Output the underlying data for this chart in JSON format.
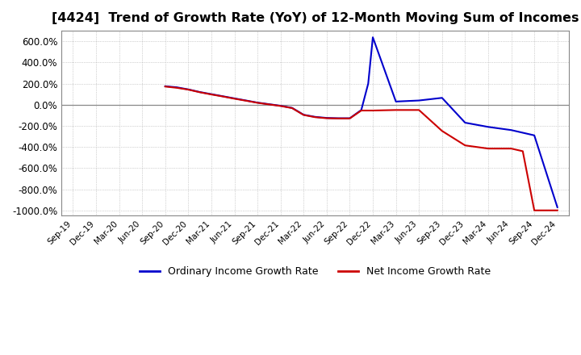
{
  "title": "[4424]  Trend of Growth Rate (YoY) of 12-Month Moving Sum of Incomes",
  "title_fontsize": 11.5,
  "background_color": "#ffffff",
  "plot_bg_color": "#ffffff",
  "grid_color": "#aaaaaa",
  "zero_line_color": "#888888",
  "ordinary_color": "#0000cc",
  "net_color": "#cc0000",
  "ylim": [
    -1050,
    700
  ],
  "yticks": [
    600,
    400,
    200,
    0,
    -200,
    -400,
    -600,
    -800,
    -1000
  ],
  "xtick_labels": [
    "Sep-19",
    "Dec-19",
    "Mar-20",
    "Jun-20",
    "Sep-20",
    "Dec-20",
    "Mar-21",
    "Jun-21",
    "Sep-21",
    "Dec-21",
    "Mar-22",
    "Jun-22",
    "Sep-22",
    "Dec-22",
    "Mar-23",
    "Jun-23",
    "Sep-23",
    "Dec-23",
    "Mar-24",
    "Jun-24",
    "Sep-24",
    "Dec-24"
  ],
  "ord_x": [
    4,
    4.5,
    5,
    5.5,
    6,
    6.5,
    7,
    7.5,
    8,
    8.5,
    9,
    9.5,
    10,
    10.5,
    11,
    11.5,
    12,
    12.5,
    12.8,
    13,
    14,
    15,
    16,
    17,
    18,
    19,
    20,
    21
  ],
  "ord_y": [
    175,
    165,
    145,
    120,
    100,
    80,
    60,
    40,
    20,
    5,
    -10,
    -30,
    -95,
    -115,
    -125,
    -128,
    -128,
    -50,
    200,
    638,
    30,
    40,
    65,
    -170,
    -210,
    -240,
    -290,
    -970
  ],
  "net_x": [
    4,
    4.5,
    5,
    5.5,
    6,
    6.5,
    7,
    7.5,
    8,
    8.5,
    9,
    9.5,
    10,
    10.5,
    11,
    11.5,
    12,
    12.5,
    13,
    14,
    15,
    16,
    17,
    18,
    19,
    19.5,
    20,
    21
  ],
  "net_y": [
    172,
    160,
    143,
    118,
    97,
    78,
    57,
    38,
    18,
    3,
    -12,
    -32,
    -97,
    -118,
    -128,
    -130,
    -130,
    -55,
    -55,
    -50,
    -50,
    -248,
    -385,
    -415,
    -415,
    -440,
    -1000,
    -1000
  ],
  "legend_labels": [
    "Ordinary Income Growth Rate",
    "Net Income Growth Rate"
  ]
}
